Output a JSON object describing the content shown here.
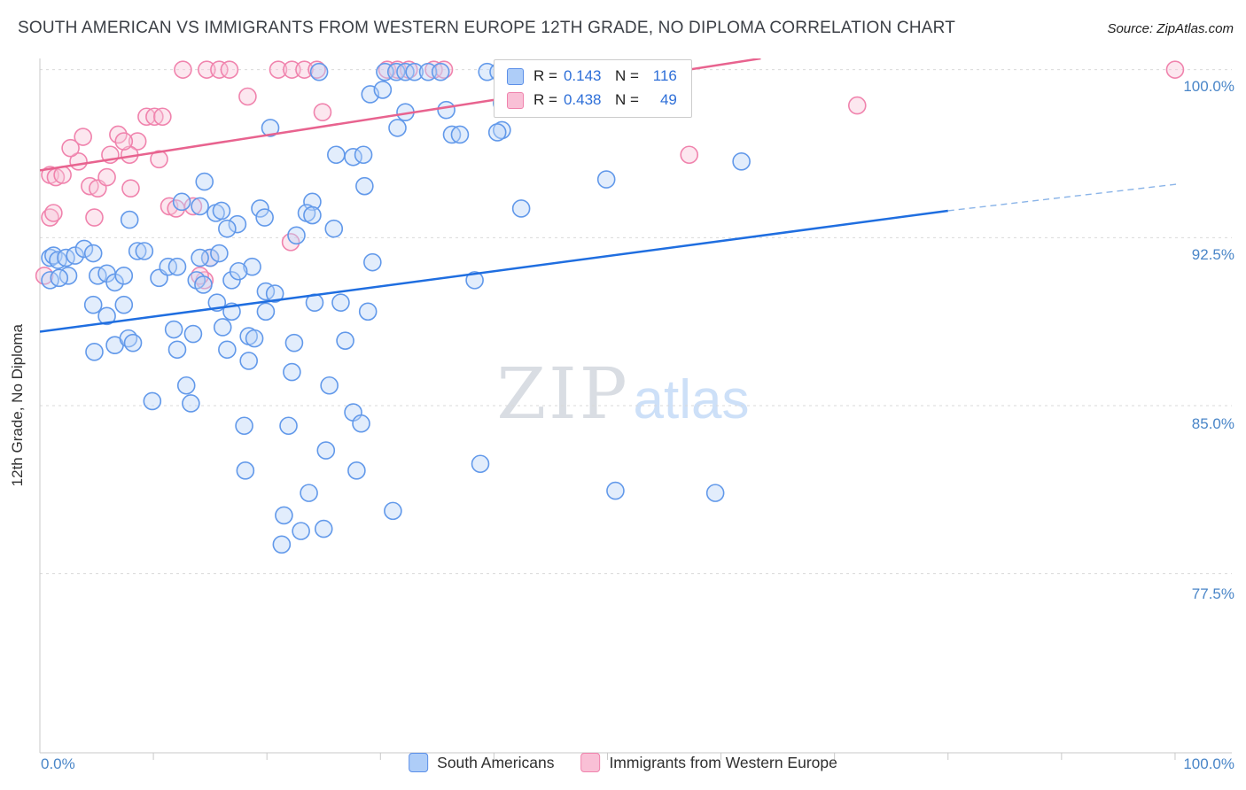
{
  "header": {
    "title": "SOUTH AMERICAN VS IMMIGRANTS FROM WESTERN EUROPE 12TH GRADE, NO DIPLOMA CORRELATION CHART",
    "source": "Source: ZipAtlas.com"
  },
  "chart_data": {
    "type": "scatter",
    "title": "SOUTH AMERICAN VS IMMIGRANTS FROM WESTERN EUROPE 12TH GRADE, NO DIPLOMA CORRELATION CHART",
    "watermark": [
      "ZIP",
      "atlas"
    ],
    "x_axis": {
      "min_label": "0.0%",
      "max_label": "100.0%",
      "range": [
        0,
        105
      ],
      "tick_step": 10
    },
    "y_axis": {
      "label": "12th Grade, No Diploma",
      "range": [
        69.5,
        100.5
      ],
      "ticks": [
        {
          "value": 100,
          "label": "100.0%"
        },
        {
          "value": 92.5,
          "label": "92.5%"
        },
        {
          "value": 85,
          "label": "85.0%"
        },
        {
          "value": 77.5,
          "label": "77.5%"
        }
      ]
    },
    "stats_labels": {
      "r": "R =",
      "n": "N ="
    },
    "colors": {
      "grid": "#d9d9d9",
      "axis": "#c9c9c9",
      "tick_text": "#4a86c8",
      "stat_value": "#2e6fd8"
    },
    "series": [
      {
        "name": "South Americans",
        "R": "0.143",
        "N": "116",
        "stroke": "#6299ea",
        "fill": "#b9d4f8",
        "points": [
          [
            24.6,
            99.9
          ],
          [
            30.4,
            99.9
          ],
          [
            31.4,
            99.9
          ],
          [
            32.2,
            99.9
          ],
          [
            33.0,
            99.9
          ],
          [
            34.2,
            99.9
          ],
          [
            35.3,
            99.9
          ],
          [
            39.4,
            99.9
          ],
          [
            40.4,
            99.9
          ],
          [
            29.1,
            98.9
          ],
          [
            30.2,
            99.1
          ],
          [
            32.2,
            98.1
          ],
          [
            35.8,
            98.2
          ],
          [
            40.7,
            98.5
          ],
          [
            40.7,
            97.3
          ],
          [
            40.3,
            97.2
          ],
          [
            31.5,
            97.4
          ],
          [
            36.3,
            97.1
          ],
          [
            37.0,
            97.1
          ],
          [
            20.3,
            97.4
          ],
          [
            26.1,
            96.2
          ],
          [
            27.6,
            96.1
          ],
          [
            28.5,
            96.2
          ],
          [
            49.9,
            95.1
          ],
          [
            61.8,
            95.9
          ],
          [
            42.4,
            93.8
          ],
          [
            28.6,
            94.8
          ],
          [
            7.9,
            93.3
          ],
          [
            12.5,
            94.1
          ],
          [
            14.1,
            93.9
          ],
          [
            14.5,
            95.0
          ],
          [
            17.4,
            93.1
          ],
          [
            19.4,
            93.8
          ],
          [
            24.0,
            94.1
          ],
          [
            25.9,
            92.9
          ],
          [
            8.6,
            91.9
          ],
          [
            9.2,
            91.9
          ],
          [
            15.5,
            93.6
          ],
          [
            16.0,
            93.7
          ],
          [
            16.5,
            92.9
          ],
          [
            19.8,
            93.4
          ],
          [
            22.6,
            92.6
          ],
          [
            23.5,
            93.6
          ],
          [
            0.9,
            91.6
          ],
          [
            1.2,
            91.7
          ],
          [
            1.6,
            91.5
          ],
          [
            2.3,
            91.6
          ],
          [
            3.1,
            91.7
          ],
          [
            3.9,
            92.0
          ],
          [
            4.7,
            91.8
          ],
          [
            2.5,
            90.8
          ],
          [
            0.9,
            90.6
          ],
          [
            1.7,
            90.7
          ],
          [
            5.1,
            90.8
          ],
          [
            5.9,
            90.9
          ],
          [
            6.6,
            90.5
          ],
          [
            7.4,
            90.8
          ],
          [
            10.5,
            90.7
          ],
          [
            11.3,
            91.2
          ],
          [
            12.1,
            91.2
          ],
          [
            13.8,
            90.6
          ],
          [
            15.0,
            91.6
          ],
          [
            14.4,
            90.4
          ],
          [
            16.9,
            90.6
          ],
          [
            18.7,
            91.2
          ],
          [
            19.9,
            90.1
          ],
          [
            20.7,
            90.0
          ],
          [
            29.3,
            91.4
          ],
          [
            38.3,
            90.6
          ],
          [
            4.7,
            89.5
          ],
          [
            5.9,
            89.0
          ],
          [
            7.4,
            89.5
          ],
          [
            15.6,
            89.6
          ],
          [
            16.9,
            89.2
          ],
          [
            19.9,
            89.2
          ],
          [
            24.2,
            89.6
          ],
          [
            26.5,
            89.6
          ],
          [
            28.9,
            89.2
          ],
          [
            16.1,
            88.5
          ],
          [
            16.5,
            87.5
          ],
          [
            18.4,
            88.1
          ],
          [
            18.9,
            88.0
          ],
          [
            4.8,
            87.4
          ],
          [
            6.6,
            87.7
          ],
          [
            7.8,
            88.0
          ],
          [
            8.2,
            87.8
          ],
          [
            11.8,
            88.4
          ],
          [
            12.1,
            87.5
          ],
          [
            13.5,
            88.2
          ],
          [
            22.4,
            87.8
          ],
          [
            26.9,
            87.9
          ],
          [
            18.4,
            87.0
          ],
          [
            22.2,
            86.5
          ],
          [
            25.5,
            85.9
          ],
          [
            12.9,
            85.9
          ],
          [
            13.3,
            85.1
          ],
          [
            9.9,
            85.2
          ],
          [
            18.0,
            84.1
          ],
          [
            21.9,
            84.1
          ],
          [
            27.6,
            84.7
          ],
          [
            28.3,
            84.2
          ],
          [
            25.2,
            83.0
          ],
          [
            38.8,
            82.4
          ],
          [
            18.1,
            82.1
          ],
          [
            27.9,
            82.1
          ],
          [
            23.7,
            81.1
          ],
          [
            31.1,
            80.3
          ],
          [
            21.5,
            80.1
          ],
          [
            23.0,
            79.4
          ],
          [
            25.0,
            79.5
          ],
          [
            21.3,
            78.8
          ],
          [
            50.7,
            81.2
          ],
          [
            59.5,
            81.1
          ],
          [
            14.1,
            91.6
          ],
          [
            15.8,
            91.8
          ],
          [
            24.0,
            93.5
          ],
          [
            17.5,
            91.0
          ]
        ]
      },
      {
        "name": "Immigrants from Western Europe",
        "R": "0.438",
        "N": "49",
        "stroke": "#f083ad",
        "fill": "#f9c6da",
        "points": [
          [
            12.6,
            100.0
          ],
          [
            14.7,
            100.0
          ],
          [
            15.8,
            100.0
          ],
          [
            16.7,
            100.0
          ],
          [
            21.0,
            100.0
          ],
          [
            22.2,
            100.0
          ],
          [
            23.3,
            100.0
          ],
          [
            24.4,
            100.0
          ],
          [
            30.6,
            100.0
          ],
          [
            31.5,
            100.0
          ],
          [
            32.5,
            100.0
          ],
          [
            34.7,
            100.0
          ],
          [
            35.6,
            100.0
          ],
          [
            47.7,
            100.0
          ],
          [
            100.0,
            100.0
          ],
          [
            18.3,
            98.8
          ],
          [
            24.9,
            98.1
          ],
          [
            9.4,
            97.9
          ],
          [
            10.1,
            97.9
          ],
          [
            10.8,
            97.9
          ],
          [
            6.9,
            97.1
          ],
          [
            8.6,
            96.8
          ],
          [
            7.9,
            96.2
          ],
          [
            3.4,
            95.9
          ],
          [
            3.8,
            97.0
          ],
          [
            2.7,
            96.5
          ],
          [
            0.9,
            95.3
          ],
          [
            1.4,
            95.2
          ],
          [
            2.0,
            95.3
          ],
          [
            4.4,
            94.8
          ],
          [
            5.1,
            94.7
          ],
          [
            5.9,
            95.2
          ],
          [
            8.0,
            94.7
          ],
          [
            10.5,
            96.0
          ],
          [
            0.9,
            93.4
          ],
          [
            1.2,
            93.6
          ],
          [
            4.8,
            93.4
          ],
          [
            11.4,
            93.9
          ],
          [
            12.0,
            93.8
          ],
          [
            14.5,
            90.6
          ],
          [
            15.0,
            91.6
          ],
          [
            14.1,
            90.8
          ],
          [
            22.1,
            92.3
          ],
          [
            72.0,
            98.4
          ],
          [
            57.2,
            96.2
          ],
          [
            0.4,
            90.8
          ],
          [
            7.4,
            96.8
          ],
          [
            6.2,
            96.2
          ],
          [
            13.5,
            93.9
          ]
        ]
      }
    ],
    "trend_lines": [
      {
        "series": "South Americans",
        "color": "#1f6ee0",
        "solid": [
          [
            0,
            88.3
          ],
          [
            80,
            93.7
          ]
        ],
        "dashed": [
          [
            80,
            93.7
          ],
          [
            100.4,
            94.9
          ]
        ],
        "dash_color": "#8ab4e8"
      },
      {
        "series": "Immigrants from Western Europe",
        "color": "#e8638f",
        "solid": [
          [
            0,
            95.5
          ],
          [
            63.5,
            100.5
          ]
        ]
      }
    ]
  }
}
